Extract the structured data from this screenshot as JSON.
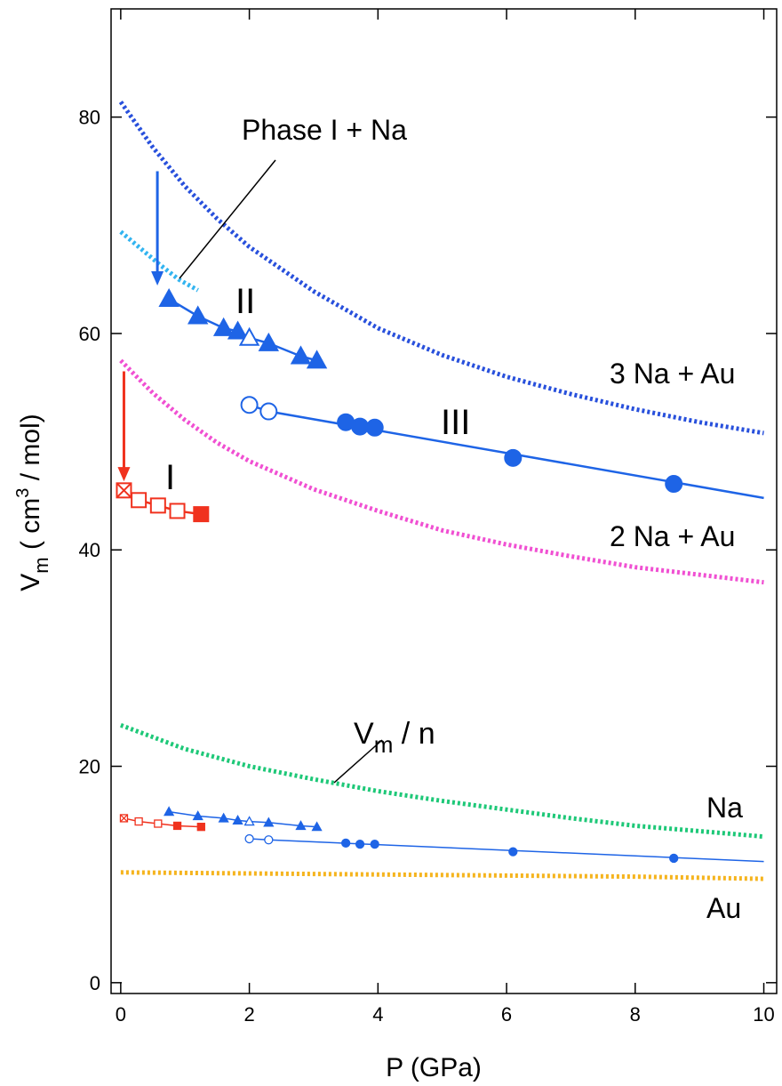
{
  "chart_data": {
    "type": "scatter",
    "xlabel": "P (GPa)",
    "ylabel_main": "V",
    "ylabel_sub": "m",
    "ylabel_rest": " ( cm",
    "ylabel_sup": "3",
    "ylabel_end": " / mol)",
    "xlim": [
      -0.15,
      10.2
    ],
    "ylim": [
      -1,
      90
    ],
    "x_ticks": [
      0,
      2,
      4,
      6,
      8,
      10
    ],
    "y_ticks": [
      0,
      20,
      40,
      60,
      80
    ],
    "grid": false,
    "colors": {
      "phase_I": "#f0321e",
      "phase_II": "#1e64e6",
      "phase_III": "#1e64e6",
      "arrow_blue": "#1e64e6",
      "arrow_red": "#f0321e",
      "curve_3NaAu": "#2850dc",
      "curve_2NaAu": "#f050d2",
      "curve_PhaseINa": "#32b4f0",
      "curve_Na": "#1ec878",
      "curve_Au": "#f5b41e"
    },
    "curves": [
      {
        "name": "3 Na + Au",
        "color": "#2850dc",
        "x": [
          0,
          0.5,
          1,
          1.5,
          2,
          3,
          4,
          5,
          6,
          7,
          8,
          9,
          10
        ],
        "y": [
          81.4,
          77.2,
          73.6,
          70.6,
          68.0,
          63.9,
          60.5,
          58.0,
          56.0,
          54.4,
          53.0,
          51.8,
          50.8
        ]
      },
      {
        "name": "2 Na + Au",
        "color": "#f050d2",
        "x": [
          0,
          0.5,
          1,
          1.5,
          2,
          3,
          4,
          5,
          6,
          7,
          8,
          9,
          10
        ],
        "y": [
          57.5,
          54.5,
          52.0,
          49.9,
          48.2,
          45.6,
          43.6,
          41.8,
          40.5,
          39.4,
          38.4,
          37.7,
          37.0
        ]
      },
      {
        "name": "Phase I + Na",
        "color": "#32b4f0",
        "x": [
          0,
          0.3,
          0.6,
          0.9,
          1.2
        ],
        "y": [
          69.4,
          67.9,
          66.4,
          65.0,
          64.0
        ]
      },
      {
        "name": "Na",
        "color": "#1ec878",
        "x": [
          0,
          0.5,
          1,
          1.5,
          2,
          3,
          4,
          5,
          6,
          7,
          8,
          9,
          10
        ],
        "y": [
          23.8,
          22.7,
          21.6,
          20.8,
          20.0,
          18.8,
          17.7,
          16.8,
          16.0,
          15.2,
          14.5,
          14.0,
          13.5
        ]
      },
      {
        "name": "Au",
        "color": "#f5b41e",
        "x": [
          0,
          2,
          4,
          6,
          8,
          10
        ],
        "y": [
          10.2,
          10.1,
          10.0,
          9.9,
          9.8,
          9.6
        ]
      }
    ],
    "series": [
      {
        "name": "I",
        "marker": "square",
        "color": "#f0321e",
        "x": [
          0.05,
          0.28,
          0.58,
          0.88,
          1.25
        ],
        "y": [
          45.5,
          44.6,
          44.1,
          43.6,
          43.3
        ],
        "filled": [
          false,
          false,
          false,
          false,
          true
        ],
        "crossed": [
          true,
          false,
          false,
          false,
          false
        ]
      },
      {
        "name": "II",
        "marker": "triangle",
        "color": "#1e64e6",
        "x": [
          0.75,
          1.2,
          1.6,
          1.82,
          2.0,
          2.3,
          2.8,
          3.05
        ],
        "y": [
          63.2,
          61.6,
          60.5,
          60.2,
          59.6,
          59.1,
          57.9,
          57.5
        ],
        "filled": [
          true,
          true,
          true,
          true,
          false,
          true,
          true,
          true
        ]
      },
      {
        "name": "III",
        "marker": "circle",
        "color": "#1e64e6",
        "x": [
          2.0,
          2.3,
          3.5,
          3.72,
          3.95,
          6.1,
          8.6
        ],
        "y": [
          53.4,
          52.8,
          51.8,
          51.4,
          51.3,
          48.5,
          46.1
        ],
        "filled": [
          false,
          false,
          true,
          true,
          true,
          true,
          true
        ],
        "fit_x": [
          2.3,
          10.0
        ],
        "fit_y": [
          52.8,
          44.8
        ]
      },
      {
        "name": "I (Vm/n)",
        "marker": "square",
        "color": "#f0321e",
        "x": [
          0.05,
          0.28,
          0.58,
          0.88,
          1.25
        ],
        "y": [
          15.2,
          14.9,
          14.7,
          14.5,
          14.4
        ],
        "filled": [
          false,
          false,
          false,
          true,
          true
        ],
        "crossed": [
          true,
          false,
          false,
          false,
          false
        ],
        "small": true
      },
      {
        "name": "II (Vm/n)",
        "marker": "triangle",
        "color": "#1e64e6",
        "x": [
          0.75,
          1.2,
          1.6,
          1.82,
          2.0,
          2.3,
          2.8,
          3.05
        ],
        "y": [
          15.8,
          15.4,
          15.2,
          15.0,
          14.9,
          14.8,
          14.5,
          14.4
        ],
        "filled": [
          true,
          true,
          true,
          true,
          false,
          true,
          true,
          true
        ],
        "small": true
      },
      {
        "name": "III (Vm/n)",
        "marker": "circle",
        "color": "#1e64e6",
        "x": [
          2.0,
          2.3,
          3.5,
          3.72,
          3.95,
          6.1,
          8.6
        ],
        "y": [
          13.3,
          13.2,
          12.9,
          12.8,
          12.8,
          12.1,
          11.5
        ],
        "filled": [
          false,
          false,
          true,
          true,
          true,
          true,
          true
        ],
        "small": true,
        "fit_x": [
          2.3,
          10.0
        ],
        "fit_y": [
          13.2,
          11.2
        ]
      }
    ],
    "arrows": [
      {
        "color": "#1e64e6",
        "x": 0.57,
        "y_from": 75,
        "y_to": 64.6
      },
      {
        "color": "#f0321e",
        "x": 0.05,
        "y_from": 56.5,
        "y_to": 46.5
      }
    ],
    "annotations": {
      "phase_I_na": "Phase I + Na",
      "label_II": "II",
      "label_III": "III",
      "label_I": "I",
      "label_3NaAu": "3 Na + Au",
      "label_2NaAu": "2 Na + Au",
      "label_Na": "Na",
      "label_Au": "Au",
      "vmn_main": "V",
      "vmn_sub": "m",
      "vmn_rest": " / n"
    }
  }
}
